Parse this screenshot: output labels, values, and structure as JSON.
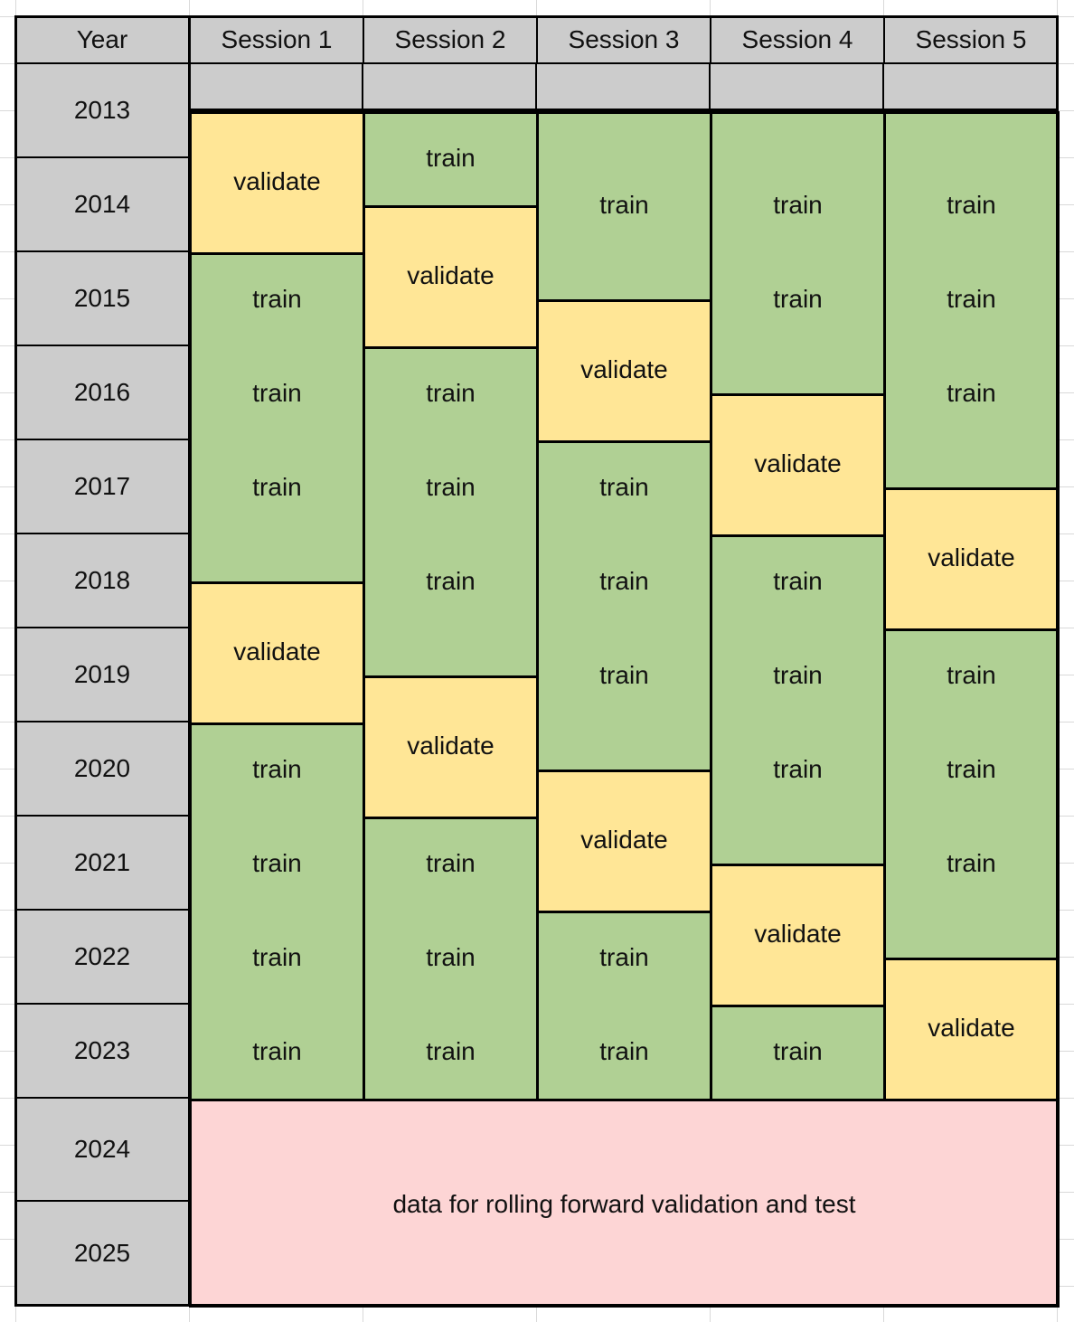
{
  "colors": {
    "header": "#cccccc",
    "train": "#b0d094",
    "validate": "#ffe696",
    "holdout": "#fdd5d5",
    "spreadsheet_gridline": "#d9d9d9",
    "border": "#000000"
  },
  "header": {
    "year_label": "Year",
    "sessions": [
      "Session 1",
      "Session 2",
      "Session 3",
      "Session 4",
      "Session 5"
    ]
  },
  "years": [
    "2013",
    "2014",
    "2015",
    "2016",
    "2017",
    "2018",
    "2019",
    "2020",
    "2021",
    "2022",
    "2023",
    "2024",
    "2025"
  ],
  "sessions": [
    {
      "blocks": [
        {
          "kind": "validate",
          "from": 2013.5,
          "to": 2015.0,
          "labels": [
            "validate"
          ]
        },
        {
          "kind": "train",
          "from": 2015.0,
          "to": 2018.5,
          "labels": [
            "train",
            "train",
            "train"
          ]
        },
        {
          "kind": "validate",
          "from": 2018.5,
          "to": 2020.0,
          "labels": [
            "validate"
          ]
        },
        {
          "kind": "train",
          "from": 2020.0,
          "to": 2024.0,
          "labels": [
            "train",
            "train",
            "train",
            "train"
          ]
        }
      ]
    },
    {
      "blocks": [
        {
          "kind": "train",
          "from": 2013.5,
          "to": 2014.5,
          "labels": [
            "train"
          ]
        },
        {
          "kind": "validate",
          "from": 2014.5,
          "to": 2016.0,
          "labels": [
            "validate"
          ]
        },
        {
          "kind": "train",
          "from": 2016.0,
          "to": 2019.5,
          "labels": [
            "train",
            "train",
            "train"
          ]
        },
        {
          "kind": "validate",
          "from": 2019.5,
          "to": 2021.0,
          "labels": [
            "validate"
          ]
        },
        {
          "kind": "train",
          "from": 2021.0,
          "to": 2024.0,
          "labels": [
            "train",
            "train",
            "train"
          ]
        }
      ]
    },
    {
      "blocks": [
        {
          "kind": "train",
          "from": 2013.5,
          "to": 2015.5,
          "labels": [
            "train"
          ]
        },
        {
          "kind": "validate",
          "from": 2015.5,
          "to": 2017.0,
          "labels": [
            "validate"
          ]
        },
        {
          "kind": "train",
          "from": 2017.0,
          "to": 2020.5,
          "labels": [
            "train",
            "train",
            "train"
          ]
        },
        {
          "kind": "validate",
          "from": 2020.5,
          "to": 2022.0,
          "labels": [
            "validate"
          ]
        },
        {
          "kind": "train",
          "from": 2022.0,
          "to": 2024.0,
          "labels": [
            "train",
            "train"
          ]
        }
      ]
    },
    {
      "blocks": [
        {
          "kind": "train",
          "from": 2013.5,
          "to": 2016.5,
          "labels": [
            "train",
            "train"
          ]
        },
        {
          "kind": "validate",
          "from": 2016.5,
          "to": 2018.0,
          "labels": [
            "validate"
          ]
        },
        {
          "kind": "train",
          "from": 2018.0,
          "to": 2021.5,
          "labels": [
            "train",
            "train",
            "train"
          ]
        },
        {
          "kind": "validate",
          "from": 2021.5,
          "to": 2023.0,
          "labels": [
            "validate"
          ]
        },
        {
          "kind": "train",
          "from": 2023.0,
          "to": 2024.0,
          "labels": [
            "train"
          ]
        }
      ]
    },
    {
      "blocks": [
        {
          "kind": "train",
          "from": 2013.5,
          "to": 2017.5,
          "labels": [
            "train",
            "train",
            "train"
          ]
        },
        {
          "kind": "validate",
          "from": 2017.5,
          "to": 2019.0,
          "labels": [
            "validate"
          ]
        },
        {
          "kind": "train",
          "from": 2019.0,
          "to": 2022.5,
          "labels": [
            "train",
            "train",
            "train"
          ]
        },
        {
          "kind": "validate",
          "from": 2022.5,
          "to": 2024.0,
          "labels": [
            "validate"
          ]
        }
      ]
    }
  ],
  "holdout": {
    "label": "data for rolling forward validation and test",
    "from": 2024.0,
    "to": 2026.0
  }
}
